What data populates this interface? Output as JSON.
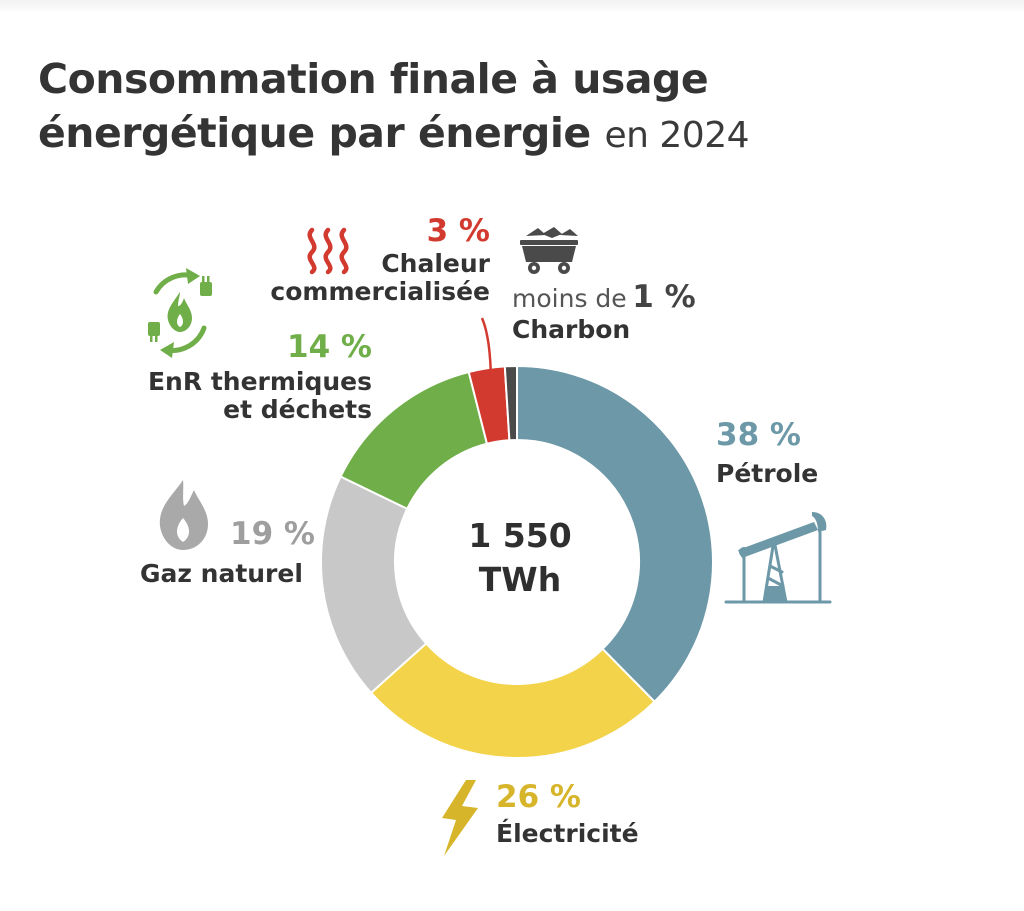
{
  "title": {
    "line1": "Consommation finale à usage",
    "line2": "énergétique par énergie",
    "year": "en 2024"
  },
  "center": {
    "value": "1 550",
    "unit": "TWh"
  },
  "labels": {
    "petrole": {
      "pct": "38 %",
      "name": "Pétrole"
    },
    "electricite": {
      "pct": "26 %",
      "name": "Électricité"
    },
    "gaz": {
      "pct": "19 %",
      "name": "Gaz naturel"
    },
    "enr": {
      "pct": "14 %",
      "name1": "EnR thermiques",
      "name2": "et déchets"
    },
    "chaleur": {
      "pct": "3 %",
      "name1": "Chaleur",
      "name2": "commercialisée"
    },
    "charbon": {
      "prefix": "moins de",
      "pct": "1 %",
      "name": "Charbon"
    }
  },
  "chart_data": {
    "type": "pie",
    "donut": true,
    "title": "Consommation finale à usage énergétique par énergie en 2024",
    "total": "1 550 TWh",
    "categories": [
      "Pétrole",
      "Électricité",
      "Gaz naturel",
      "EnR thermiques et déchets",
      "Chaleur commercialisée",
      "Charbon"
    ],
    "values": [
      38,
      26,
      19,
      14,
      3,
      1
    ],
    "unit": "%",
    "colors": [
      "#6c98a8",
      "#f3d34a",
      "#c8c8c9",
      "#6fae48",
      "#d23a2f",
      "#4a4a4a"
    ]
  },
  "colors": {
    "petrole": "#6c98a8",
    "electricite": "#f3d34a",
    "electricite_text": "#d7b52b",
    "gaz": "#c8c8c9",
    "gaz_text": "#9e9e9e",
    "enr": "#6fae48",
    "chaleur": "#d23a2f",
    "charbon": "#4a4a4a"
  },
  "icons": [
    "heat-waves-icon",
    "coal-cart-icon",
    "renewable-flame-icon",
    "gas-flame-icon",
    "oil-pump-icon",
    "lightning-bolt-icon"
  ]
}
